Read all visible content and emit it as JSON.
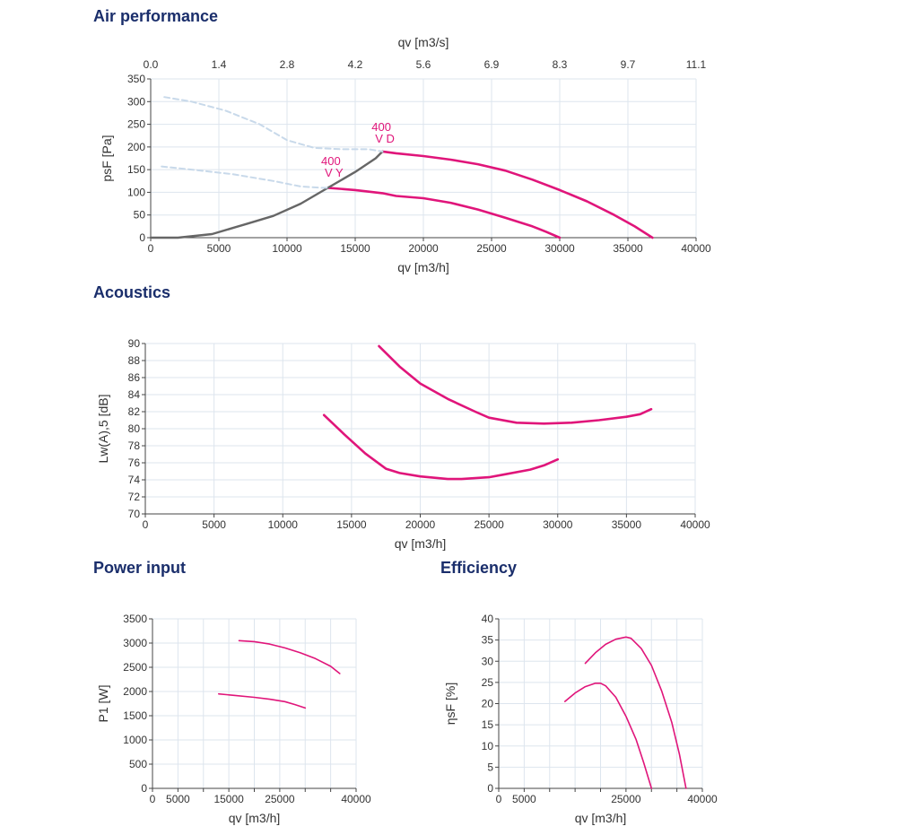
{
  "sections": {
    "air": "Air performance",
    "acoustics": "Acoustics",
    "power": "Power input",
    "efficiency": "Efficiency"
  },
  "colors": {
    "curve": "#e0157a",
    "system": "#666666",
    "dashed": "#c8d9ea",
    "grid": "#dde5ee",
    "title": "#1a2e6b"
  },
  "chart_data": [
    {
      "id": "air",
      "type": "line",
      "xlabel": "qv [m3/h]",
      "x2label": "qv [m3/s]",
      "ylabel": "psF [Pa]",
      "xlim": [
        0,
        40000
      ],
      "ylim": [
        0,
        350
      ],
      "xticks": [
        0,
        5000,
        10000,
        15000,
        20000,
        25000,
        30000,
        35000,
        40000
      ],
      "yticks": [
        0,
        50,
        100,
        150,
        200,
        250,
        300,
        350
      ],
      "x2ticks": [
        "0.0",
        "1.4",
        "2.8",
        "4.2",
        "5.6",
        "6.9",
        "8.3",
        "9.7",
        "11.1"
      ],
      "series": [
        {
          "name": "400 V D",
          "style": "pink",
          "x": [
            17000,
            18000,
            20000,
            22000,
            24000,
            26000,
            28000,
            30000,
            32000,
            34000,
            35500,
            36800
          ],
          "y": [
            190,
            186,
            180,
            172,
            162,
            148,
            128,
            105,
            80,
            50,
            25,
            0
          ]
        },
        {
          "name": "400 V Y",
          "style": "pink",
          "x": [
            13000,
            15000,
            17000,
            18000,
            20000,
            22000,
            24000,
            26000,
            28000,
            29000,
            30000
          ],
          "y": [
            110,
            105,
            98,
            92,
            87,
            77,
            62,
            44,
            25,
            13,
            0
          ]
        },
        {
          "style": "system",
          "x": [
            0,
            2000,
            4500,
            7000,
            9000,
            11000,
            13000,
            15000,
            16500,
            17000
          ],
          "y": [
            0,
            0,
            8,
            30,
            48,
            75,
            110,
            145,
            175,
            190
          ]
        },
        {
          "style": "dashed",
          "x": [
            1000,
            3000,
            5500,
            8000,
            10000,
            12000,
            14000,
            16000,
            17000
          ],
          "y": [
            310,
            300,
            280,
            250,
            215,
            198,
            195,
            195,
            190
          ]
        },
        {
          "style": "dashed",
          "x": [
            800,
            3000,
            6000,
            9000,
            11000,
            12500,
            13000
          ],
          "y": [
            157,
            150,
            140,
            125,
            113,
            110,
            110
          ]
        }
      ],
      "annotations": [
        {
          "lines": [
            "400",
            "V D"
          ],
          "x": 16200,
          "y": 235
        },
        {
          "lines": [
            "400",
            "V Y"
          ],
          "x": 12500,
          "y": 160
        }
      ]
    },
    {
      "id": "acoustics",
      "type": "line",
      "xlabel": "qv [m3/h]",
      "ylabel": "Lw(A),5 [dB]",
      "xlim": [
        0,
        40000
      ],
      "ylim": [
        70,
        90
      ],
      "xticks": [
        0,
        5000,
        10000,
        15000,
        20000,
        25000,
        30000,
        35000,
        40000
      ],
      "yticks": [
        70,
        72,
        74,
        76,
        78,
        80,
        82,
        84,
        86,
        88,
        90
      ],
      "series": [
        {
          "style": "pink",
          "x": [
            17000,
            18500,
            20000,
            22000,
            24000,
            25000,
            27000,
            29000,
            31000,
            33000,
            35000,
            36000,
            36800
          ],
          "y": [
            89.7,
            87.3,
            85.3,
            83.5,
            82.0,
            81.3,
            80.7,
            80.6,
            80.7,
            81.0,
            81.4,
            81.7,
            82.3
          ]
        },
        {
          "style": "pink",
          "x": [
            13000,
            14500,
            16000,
            17500,
            18500,
            20000,
            22000,
            23000,
            24000,
            25000,
            26000,
            28000,
            29000,
            30000
          ],
          "y": [
            81.6,
            79.3,
            77.1,
            75.3,
            74.8,
            74.4,
            74.1,
            74.1,
            74.2,
            74.3,
            74.6,
            75.2,
            75.7,
            76.4
          ]
        }
      ]
    },
    {
      "id": "power",
      "type": "line",
      "xlabel": "qv [m3/h]",
      "ylabel": "P1 [W]",
      "xlim": [
        0,
        40000
      ],
      "ylim": [
        0,
        3500
      ],
      "xticks": [
        0,
        5000,
        15000,
        25000,
        40000
      ],
      "xgrid": [
        0,
        5000,
        10000,
        15000,
        20000,
        25000,
        30000,
        35000,
        40000
      ],
      "yticks": [
        0,
        500,
        1000,
        1500,
        2000,
        2500,
        3000,
        3500
      ],
      "series": [
        {
          "style": "pink-thin",
          "x": [
            17000,
            20000,
            23000,
            26000,
            29000,
            32000,
            35000,
            36800
          ],
          "y": [
            3050,
            3030,
            2980,
            2900,
            2800,
            2680,
            2520,
            2370
          ]
        },
        {
          "style": "pink-thin",
          "x": [
            13000,
            16000,
            20000,
            23000,
            26000,
            28000,
            30000
          ],
          "y": [
            1950,
            1920,
            1880,
            1840,
            1790,
            1730,
            1660
          ]
        }
      ]
    },
    {
      "id": "efficiency",
      "type": "line",
      "xlabel": "qv [m3/h]",
      "ylabel": "ηsF [%]",
      "xlim": [
        0,
        40000
      ],
      "ylim": [
        0,
        40
      ],
      "xticks": [
        0,
        5000,
        25000,
        40000
      ],
      "xgrid": [
        0,
        5000,
        10000,
        15000,
        20000,
        25000,
        30000,
        35000,
        40000
      ],
      "yticks": [
        0,
        5,
        10,
        15,
        20,
        25,
        30,
        35,
        40
      ],
      "series": [
        {
          "style": "pink-thin",
          "x": [
            17000,
            19000,
            21000,
            23000,
            25000,
            26000,
            28000,
            30000,
            32000,
            34000,
            35500,
            36800
          ],
          "y": [
            29.5,
            32,
            34,
            35.2,
            35.7,
            35.4,
            33,
            29,
            23,
            15.5,
            8,
            0
          ]
        },
        {
          "style": "pink-thin",
          "x": [
            13000,
            15000,
            17000,
            19000,
            20000,
            21000,
            23000,
            25000,
            27000,
            28500,
            30000
          ],
          "y": [
            20.5,
            22.5,
            24,
            24.8,
            24.8,
            24.2,
            21.5,
            17,
            11.5,
            6,
            0
          ]
        }
      ]
    }
  ]
}
